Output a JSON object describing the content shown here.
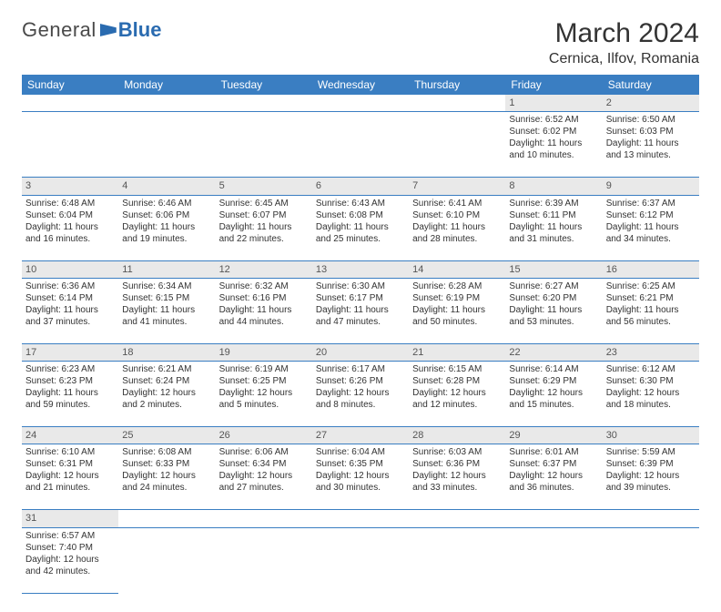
{
  "logo": {
    "text1": "General",
    "text2": "Blue"
  },
  "title": "March 2024",
  "location": "Cernica, Ilfov, Romania",
  "colors": {
    "header_bg": "#3a7ec2",
    "header_fg": "#ffffff",
    "daynum_bg": "#e9e9e9",
    "rule": "#3a7ec2",
    "logo_blue": "#2a6bb0"
  },
  "weekdays": [
    "Sunday",
    "Monday",
    "Tuesday",
    "Wednesday",
    "Thursday",
    "Friday",
    "Saturday"
  ],
  "weeks": [
    [
      null,
      null,
      null,
      null,
      null,
      {
        "n": "1",
        "sr": "Sunrise: 6:52 AM",
        "ss": "Sunset: 6:02 PM",
        "d1": "Daylight: 11 hours",
        "d2": "and 10 minutes."
      },
      {
        "n": "2",
        "sr": "Sunrise: 6:50 AM",
        "ss": "Sunset: 6:03 PM",
        "d1": "Daylight: 11 hours",
        "d2": "and 13 minutes."
      }
    ],
    [
      {
        "n": "3",
        "sr": "Sunrise: 6:48 AM",
        "ss": "Sunset: 6:04 PM",
        "d1": "Daylight: 11 hours",
        "d2": "and 16 minutes."
      },
      {
        "n": "4",
        "sr": "Sunrise: 6:46 AM",
        "ss": "Sunset: 6:06 PM",
        "d1": "Daylight: 11 hours",
        "d2": "and 19 minutes."
      },
      {
        "n": "5",
        "sr": "Sunrise: 6:45 AM",
        "ss": "Sunset: 6:07 PM",
        "d1": "Daylight: 11 hours",
        "d2": "and 22 minutes."
      },
      {
        "n": "6",
        "sr": "Sunrise: 6:43 AM",
        "ss": "Sunset: 6:08 PM",
        "d1": "Daylight: 11 hours",
        "d2": "and 25 minutes."
      },
      {
        "n": "7",
        "sr": "Sunrise: 6:41 AM",
        "ss": "Sunset: 6:10 PM",
        "d1": "Daylight: 11 hours",
        "d2": "and 28 minutes."
      },
      {
        "n": "8",
        "sr": "Sunrise: 6:39 AM",
        "ss": "Sunset: 6:11 PM",
        "d1": "Daylight: 11 hours",
        "d2": "and 31 minutes."
      },
      {
        "n": "9",
        "sr": "Sunrise: 6:37 AM",
        "ss": "Sunset: 6:12 PM",
        "d1": "Daylight: 11 hours",
        "d2": "and 34 minutes."
      }
    ],
    [
      {
        "n": "10",
        "sr": "Sunrise: 6:36 AM",
        "ss": "Sunset: 6:14 PM",
        "d1": "Daylight: 11 hours",
        "d2": "and 37 minutes."
      },
      {
        "n": "11",
        "sr": "Sunrise: 6:34 AM",
        "ss": "Sunset: 6:15 PM",
        "d1": "Daylight: 11 hours",
        "d2": "and 41 minutes."
      },
      {
        "n": "12",
        "sr": "Sunrise: 6:32 AM",
        "ss": "Sunset: 6:16 PM",
        "d1": "Daylight: 11 hours",
        "d2": "and 44 minutes."
      },
      {
        "n": "13",
        "sr": "Sunrise: 6:30 AM",
        "ss": "Sunset: 6:17 PM",
        "d1": "Daylight: 11 hours",
        "d2": "and 47 minutes."
      },
      {
        "n": "14",
        "sr": "Sunrise: 6:28 AM",
        "ss": "Sunset: 6:19 PM",
        "d1": "Daylight: 11 hours",
        "d2": "and 50 minutes."
      },
      {
        "n": "15",
        "sr": "Sunrise: 6:27 AM",
        "ss": "Sunset: 6:20 PM",
        "d1": "Daylight: 11 hours",
        "d2": "and 53 minutes."
      },
      {
        "n": "16",
        "sr": "Sunrise: 6:25 AM",
        "ss": "Sunset: 6:21 PM",
        "d1": "Daylight: 11 hours",
        "d2": "and 56 minutes."
      }
    ],
    [
      {
        "n": "17",
        "sr": "Sunrise: 6:23 AM",
        "ss": "Sunset: 6:23 PM",
        "d1": "Daylight: 11 hours",
        "d2": "and 59 minutes."
      },
      {
        "n": "18",
        "sr": "Sunrise: 6:21 AM",
        "ss": "Sunset: 6:24 PM",
        "d1": "Daylight: 12 hours",
        "d2": "and 2 minutes."
      },
      {
        "n": "19",
        "sr": "Sunrise: 6:19 AM",
        "ss": "Sunset: 6:25 PM",
        "d1": "Daylight: 12 hours",
        "d2": "and 5 minutes."
      },
      {
        "n": "20",
        "sr": "Sunrise: 6:17 AM",
        "ss": "Sunset: 6:26 PM",
        "d1": "Daylight: 12 hours",
        "d2": "and 8 minutes."
      },
      {
        "n": "21",
        "sr": "Sunrise: 6:15 AM",
        "ss": "Sunset: 6:28 PM",
        "d1": "Daylight: 12 hours",
        "d2": "and 12 minutes."
      },
      {
        "n": "22",
        "sr": "Sunrise: 6:14 AM",
        "ss": "Sunset: 6:29 PM",
        "d1": "Daylight: 12 hours",
        "d2": "and 15 minutes."
      },
      {
        "n": "23",
        "sr": "Sunrise: 6:12 AM",
        "ss": "Sunset: 6:30 PM",
        "d1": "Daylight: 12 hours",
        "d2": "and 18 minutes."
      }
    ],
    [
      {
        "n": "24",
        "sr": "Sunrise: 6:10 AM",
        "ss": "Sunset: 6:31 PM",
        "d1": "Daylight: 12 hours",
        "d2": "and 21 minutes."
      },
      {
        "n": "25",
        "sr": "Sunrise: 6:08 AM",
        "ss": "Sunset: 6:33 PM",
        "d1": "Daylight: 12 hours",
        "d2": "and 24 minutes."
      },
      {
        "n": "26",
        "sr": "Sunrise: 6:06 AM",
        "ss": "Sunset: 6:34 PM",
        "d1": "Daylight: 12 hours",
        "d2": "and 27 minutes."
      },
      {
        "n": "27",
        "sr": "Sunrise: 6:04 AM",
        "ss": "Sunset: 6:35 PM",
        "d1": "Daylight: 12 hours",
        "d2": "and 30 minutes."
      },
      {
        "n": "28",
        "sr": "Sunrise: 6:03 AM",
        "ss": "Sunset: 6:36 PM",
        "d1": "Daylight: 12 hours",
        "d2": "and 33 minutes."
      },
      {
        "n": "29",
        "sr": "Sunrise: 6:01 AM",
        "ss": "Sunset: 6:37 PM",
        "d1": "Daylight: 12 hours",
        "d2": "and 36 minutes."
      },
      {
        "n": "30",
        "sr": "Sunrise: 5:59 AM",
        "ss": "Sunset: 6:39 PM",
        "d1": "Daylight: 12 hours",
        "d2": "and 39 minutes."
      }
    ],
    [
      {
        "n": "31",
        "sr": "Sunrise: 6:57 AM",
        "ss": "Sunset: 7:40 PM",
        "d1": "Daylight: 12 hours",
        "d2": "and 42 minutes."
      },
      null,
      null,
      null,
      null,
      null,
      null
    ]
  ]
}
